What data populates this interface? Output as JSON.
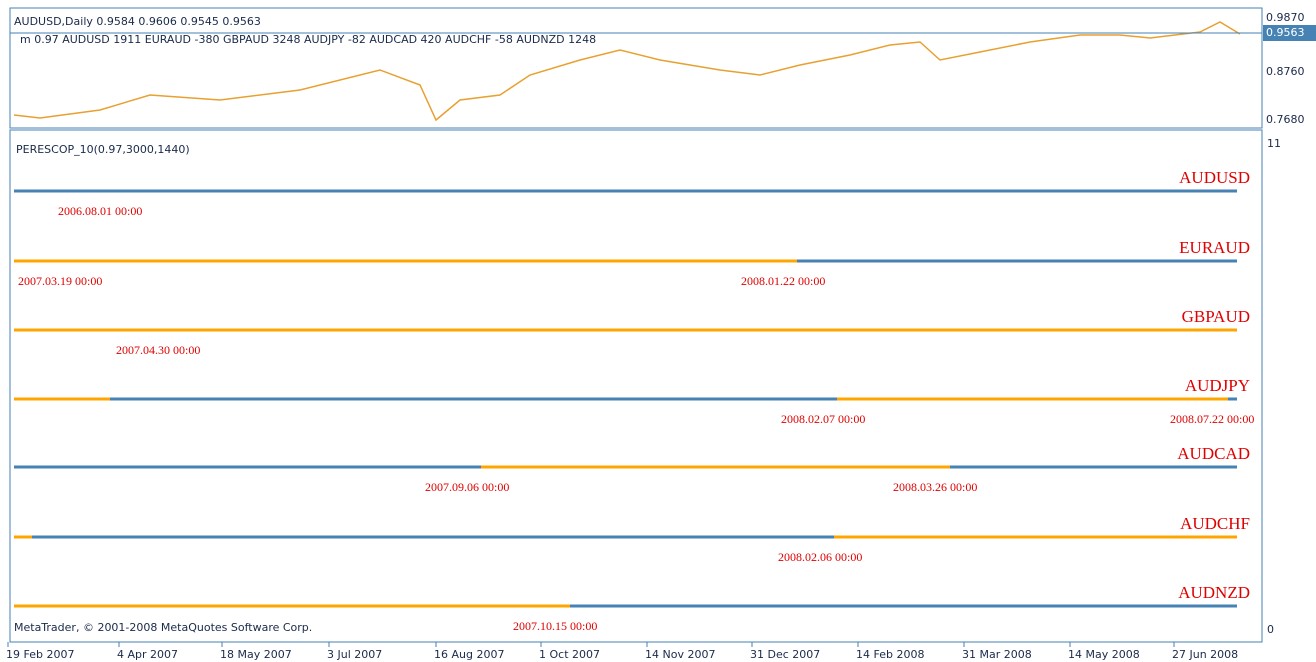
{
  "header": {
    "symbol_line": "AUDUSD,Daily  0.9584 0.9606 0.9545 0.9563",
    "indicator_values": "m 0.97 AUDUSD 1911 EURAUD -380 GBPAUD 3248 AUDJPY -82 AUDCAD 420 AUDCHF -58 AUDNZD 1248"
  },
  "price_axis": [
    "0.9870",
    "0.9563",
    "0.8760",
    "0.7680"
  ],
  "indicator": {
    "name": "PERESCOP_10(0.97,3000,1440)",
    "axis_top": "11",
    "axis_bottom": "0",
    "colors": {
      "a": "#ffa500",
      "b": "#4682b4"
    },
    "rows": [
      {
        "name": "AUDUSD",
        "segments": [
          "b"
        ],
        "dates": [
          "2006.08.01 00:00"
        ]
      },
      {
        "name": "EURAUD",
        "segments": [
          "a",
          "b"
        ],
        "dates": [
          "2007.03.19 00:00",
          "2008.01.22 00:00"
        ]
      },
      {
        "name": "GBPAUD",
        "segments": [
          "a"
        ],
        "dates": [
          "2007.04.30 00:00"
        ]
      },
      {
        "name": "AUDJPY",
        "segments": [
          "a",
          "b",
          "a",
          "b"
        ],
        "dates": [
          "2008.02.07 00:00",
          "2008.07.22 00:00"
        ]
      },
      {
        "name": "AUDCAD",
        "segments": [
          "b",
          "a",
          "b"
        ],
        "dates": [
          "2007.09.06 00:00",
          "2008.03.26 00:00"
        ]
      },
      {
        "name": "AUDCHF",
        "segments": [
          "a",
          "b",
          "a"
        ],
        "dates": [
          "2008.02.06 00:00"
        ]
      },
      {
        "name": "AUDNZD",
        "segments": [
          "a",
          "b"
        ],
        "dates": [
          "2007.10.15 00:00"
        ]
      }
    ]
  },
  "footer": "MetaTrader, © 2001-2008 MetaQuotes Software Corp.",
  "time_axis": [
    "19 Feb 2007",
    "4 Apr 2007",
    "18 May 2007",
    "3 Jul 2007",
    "16 Aug 2007",
    "1 Oct 2007",
    "14 Nov 2007",
    "31 Dec 2007",
    "14 Feb 2008",
    "31 Mar 2008",
    "14 May 2008",
    "27 Jun 2008"
  ]
}
